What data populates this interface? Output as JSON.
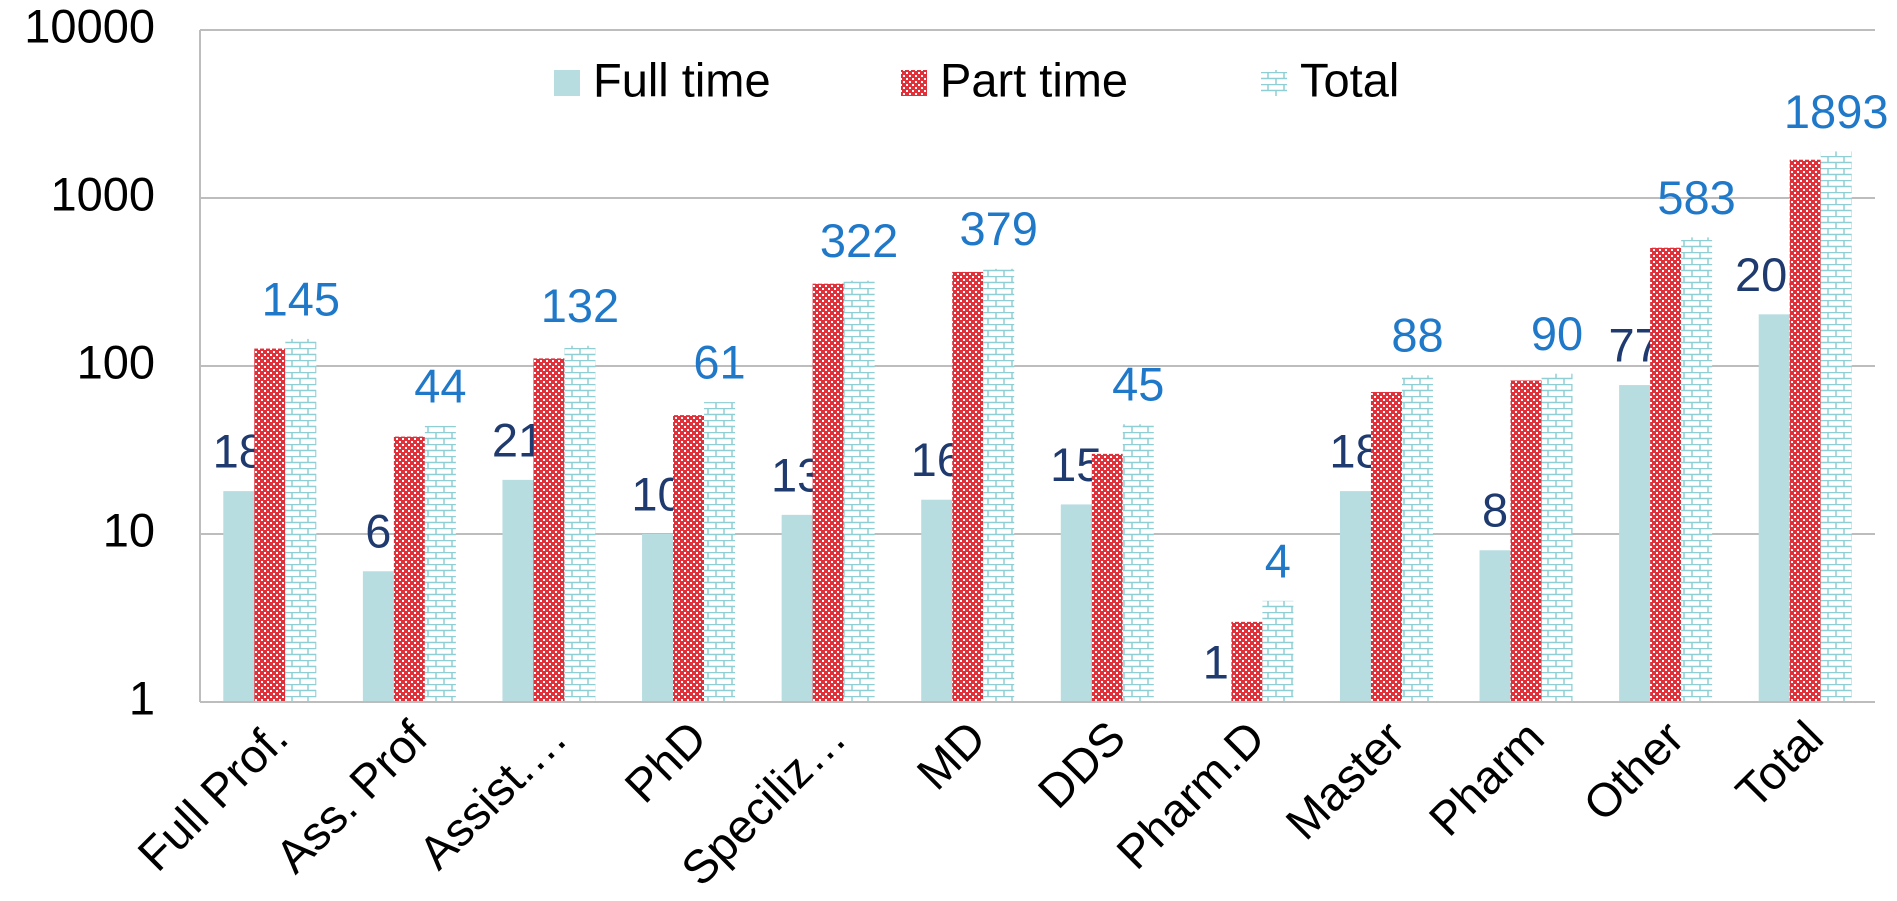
{
  "chart_data": {
    "type": "bar",
    "log_scale": true,
    "grid": true,
    "legend": "top",
    "categories": [
      "Full Prof.",
      "Ass. Prof",
      "Assist.…",
      "PhD",
      "Speciliz…",
      "MD",
      "DDS",
      "Pharm.D",
      "Master",
      "Pharm",
      "Other",
      "Total"
    ],
    "series": [
      {
        "name": "Full time",
        "color": "#b7dde0",
        "label_color": "#1f3a6e",
        "show_labels": true,
        "values": [
          18,
          6,
          21,
          10,
          13,
          16,
          15,
          1,
          18,
          8,
          77,
          203
        ]
      },
      {
        "name": "Part time",
        "color": "#e0303a",
        "show_labels": false,
        "values": [
          127,
          38,
          111,
          51,
          309,
          363,
          30,
          3,
          70,
          82,
          506,
          1690
        ]
      },
      {
        "name": "Total",
        "color": "#8fcfd3",
        "label_color": "#1f78c8",
        "show_labels": true,
        "values": [
          145,
          44,
          132,
          61,
          322,
          379,
          45,
          4,
          88,
          90,
          583,
          1893
        ]
      }
    ],
    "ylim": [
      1,
      10000
    ],
    "yticks": [
      1,
      10,
      100,
      1000,
      10000
    ]
  }
}
